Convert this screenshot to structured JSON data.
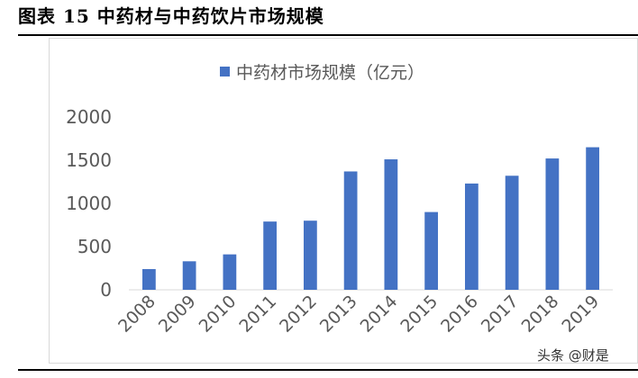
{
  "figure": {
    "title": "图表 15  中药材与中药饮片市场规模"
  },
  "watermark": "头条 @财是",
  "chart_data": {
    "type": "bar",
    "title": "",
    "xlabel": "",
    "ylabel": "",
    "categories": [
      "2008",
      "2009",
      "2010",
      "2011",
      "2012",
      "2013",
      "2014",
      "2015",
      "2016",
      "2017",
      "2018",
      "2019"
    ],
    "series": [
      {
        "name": "中药材市场规模（亿元）",
        "color": "#4472c4",
        "values": [
          240,
          330,
          410,
          790,
          800,
          1370,
          1510,
          900,
          1230,
          1320,
          1520,
          1650
        ]
      }
    ],
    "ylim": [
      0,
      2000
    ],
    "yticks": [
      "0",
      "500",
      "1000",
      "1500",
      "2000"
    ],
    "ytick_values": [
      0,
      500,
      1000,
      1500,
      2000
    ],
    "grid": false,
    "legend_position": "top"
  }
}
